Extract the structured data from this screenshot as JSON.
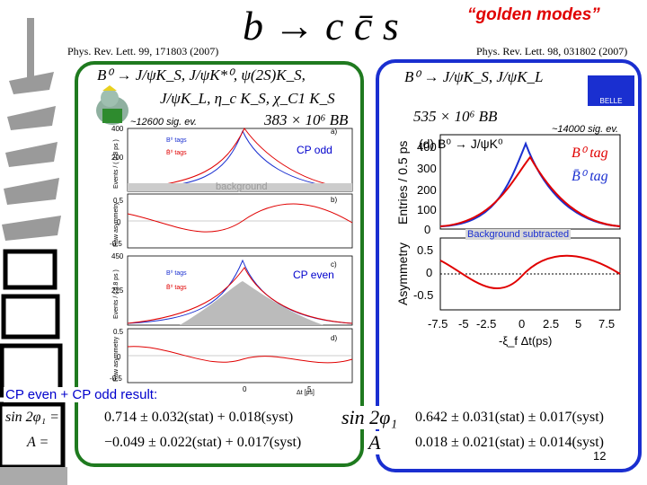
{
  "title": "b → c c̄ s",
  "golden": "“golden modes”",
  "left": {
    "ref": "Phys. Rev. Lett. 99, 171803 (2007)",
    "mode1": "B⁰ →   J/ψK_S, J/ψK*⁰, ψ(2S)K_S,",
    "mode2": "J/ψK_L, η_c K_S, χ_C1 K_S",
    "nbb": "383 × 10⁶ BB",
    "sig": "~12600 sig. ev.",
    "cp_odd": "CP odd",
    "cp_even": "CP even",
    "background": "background",
    "panel_a": "a)",
    "panel_b": "b)",
    "panel_c": "c)",
    "panel_d": "d)",
    "legend_b0": "B⁰ tags",
    "legend_b0bar": "B̄⁰ tags",
    "ylabel_events": "Events / ( 0.8 ps )",
    "ylabel_asym": "Raw asymmetry",
    "xlabel": "Δt [ps]"
  },
  "right": {
    "ref": "Phys. Rev. Lett. 98, 031802 (2007)",
    "mode": "B⁰ → J/ψK_S, J/ψK_L",
    "nbb": "535 × 10⁶ BB",
    "sig": "~14000 sig. ev.",
    "panel": "(d) B⁰ → J/ψK⁰",
    "btag": "B⁰ tag",
    "bbartag": "B̄⁰ tag",
    "bkg_sub": "Background subtracted",
    "ylabel_entries": "Entries / 0.5 ps",
    "ylabel_asym": "Asymmetry",
    "xlabel": "-ξ_f Δt(ps)",
    "logo": "BELLE"
  },
  "cp_label": "CP even + CP odd result:",
  "result_left": {
    "s_label": "sin 2φ₁ =",
    "s_val": "0.714 ± 0.032(stat) + 0.018(syst)",
    "a_label": "A =",
    "a_val": "−0.049 ± 0.022(stat) + 0.017(syst)"
  },
  "result_right": {
    "s_label": "sin 2φ₁",
    "s_val": "0.642 ± 0.031(stat) ± 0.017(syst)",
    "a_label": "A",
    "a_val": "0.018 ± 0.021(stat) ± 0.014(syst)"
  },
  "page_number": "12",
  "colors": {
    "blue_frame": "#1a2fd0",
    "green_frame": "#1f7a1f",
    "red": "#e00000",
    "blue": "#1a2fd0"
  },
  "chart_data": [
    {
      "type": "scatter",
      "panel": "left-a",
      "xlim": [
        -7.5,
        7.5
      ],
      "ylim": [
        0,
        400
      ],
      "yticks": [
        "200",
        "400"
      ],
      "series": [
        {
          "name": "B⁰ tags",
          "values": []
        },
        {
          "name": "B̄⁰ tags",
          "values": []
        }
      ]
    },
    {
      "type": "line",
      "panel": "left-b",
      "ylim": [
        -0.5,
        0.5
      ],
      "yticks": [
        "0.5",
        "0",
        "-0.5"
      ]
    },
    {
      "type": "scatter",
      "panel": "left-c",
      "ylim": [
        0,
        450
      ],
      "yticks": [
        "450",
        "225"
      ]
    },
    {
      "type": "line",
      "panel": "left-d",
      "ylim": [
        -0.5,
        0.5
      ],
      "yticks": [
        "0.5",
        "0",
        "-0.5"
      ],
      "xticks": [
        "0",
        "5"
      ]
    },
    {
      "type": "scatter",
      "panel": "right-top",
      "xlim": [
        -7.5,
        7.5
      ],
      "ylim": [
        0,
        400
      ],
      "yticks": [
        "0",
        "100",
        "200",
        "300",
        "400"
      ],
      "xticks": [
        "-7.5",
        "-5",
        "-2.5",
        "0",
        "2.5",
        "5",
        "7.5"
      ]
    },
    {
      "type": "line",
      "panel": "right-bottom",
      "ylim": [
        -0.5,
        0.5
      ],
      "yticks": [
        "0.5",
        "0",
        "-0.5"
      ]
    }
  ]
}
